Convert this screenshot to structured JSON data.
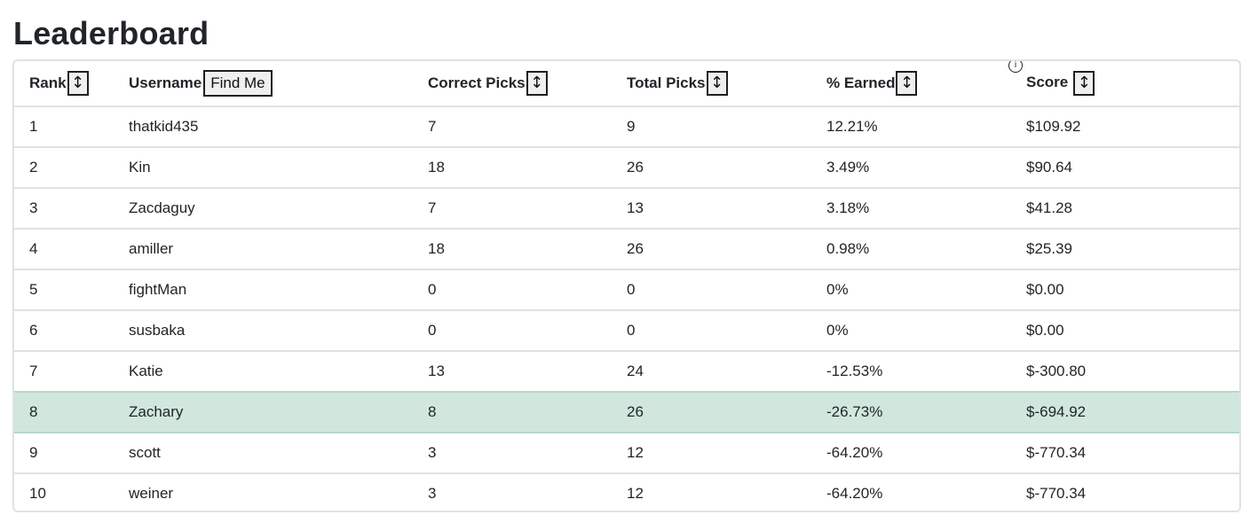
{
  "page": {
    "title": "Leaderboard"
  },
  "table": {
    "headers": {
      "rank": "Rank",
      "username": "Username",
      "correct_picks": "Correct Picks",
      "total_picks": "Total Picks",
      "earned": "% Earned",
      "score": "Score"
    },
    "find_me_label": "Find Me",
    "sort_glyph": "↕",
    "info_glyph": "i",
    "highlight_color": "#d1e7dd",
    "highlighted_rank": "8",
    "rows": [
      {
        "rank": "1",
        "username": "thatkid435",
        "correct": "7",
        "total": "9",
        "earned": "12.21%",
        "score": "$109.92"
      },
      {
        "rank": "2",
        "username": "Kin",
        "correct": "18",
        "total": "26",
        "earned": "3.49%",
        "score": "$90.64"
      },
      {
        "rank": "3",
        "username": "Zacdaguy",
        "correct": "7",
        "total": "13",
        "earned": "3.18%",
        "score": "$41.28"
      },
      {
        "rank": "4",
        "username": "amiller",
        "correct": "18",
        "total": "26",
        "earned": "0.98%",
        "score": "$25.39"
      },
      {
        "rank": "5",
        "username": "fightMan",
        "correct": "0",
        "total": "0",
        "earned": "0%",
        "score": "$0.00"
      },
      {
        "rank": "6",
        "username": "susbaka",
        "correct": "0",
        "total": "0",
        "earned": "0%",
        "score": "$0.00"
      },
      {
        "rank": "7",
        "username": "Katie",
        "correct": "13",
        "total": "24",
        "earned": "-12.53%",
        "score": "$-300.80"
      },
      {
        "rank": "8",
        "username": "Zachary",
        "correct": "8",
        "total": "26",
        "earned": "-26.73%",
        "score": "$-694.92"
      },
      {
        "rank": "9",
        "username": "scott",
        "correct": "3",
        "total": "12",
        "earned": "-64.20%",
        "score": "$-770.34"
      },
      {
        "rank": "10",
        "username": "weiner",
        "correct": "3",
        "total": "12",
        "earned": "-64.20%",
        "score": "$-770.34"
      }
    ]
  }
}
